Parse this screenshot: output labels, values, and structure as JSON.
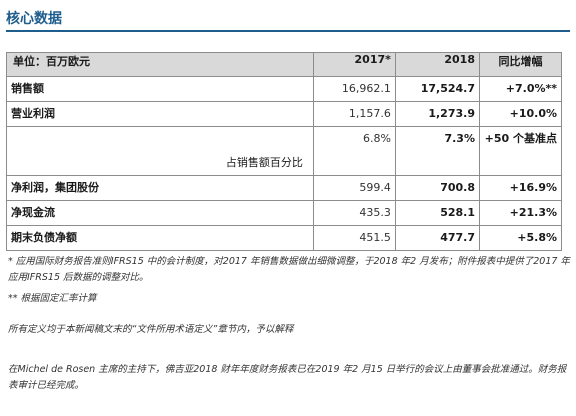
{
  "title": "核心数据",
  "table": {
    "headers": [
      "单位：百万欧元",
      "2017*",
      "2018",
      "同比增幅"
    ],
    "rows": {
      "sales": {
        "label": "销售额",
        "v2017": "16,962.1",
        "v2018": "17,524.7",
        "change": "+7.0%**"
      },
      "op_profit": {
        "label": "营业利润",
        "v2017": "1,157.6",
        "v2018": "1,273.9",
        "change": "+10.0%",
        "margin_label": "占销售额百分比",
        "margin_2017": "6.8%",
        "margin_2018": "7.3%",
        "margin_change": "+50 个基准点"
      },
      "net_profit": {
        "label": "净利润，集团股份",
        "v2017": "599.4",
        "v2018": "700.8",
        "change": "+16.9%"
      },
      "cash_flow": {
        "label": "净现金流",
        "v2017": "435.3",
        "v2018": "528.1",
        "change": "+21.3%"
      },
      "net_debt": {
        "label": "期末负债净额",
        "v2017": "451.5",
        "v2018": "477.7",
        "change": "+5.8%"
      }
    }
  },
  "notes": {
    "n1": "* 应用国际财务报告准则IFRS15 中的会计制度，对2017 年销售数据做出细微调整，于2018 年2 月发布；附件报表中提供了2017 年应用IFRS15 后数据的调整对比。",
    "n2": "** 根据固定汇率计算",
    "n3": "所有定义均于本新闻稿文末的“文件所用术语定义”章节内，予以解释",
    "n4": "在Michel de Rosen 主席的主持下，佛吉亚2018 财年年度财务报表已在2019 年2 月15 日举行的会议上由董事会批准通过。财务报表审计已经完成。"
  }
}
